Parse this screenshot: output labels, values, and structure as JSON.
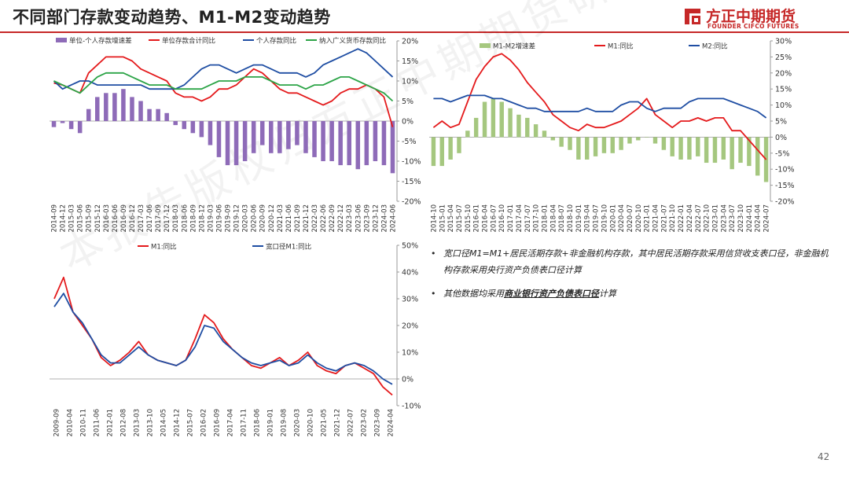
{
  "slide": {
    "title": "不同部门存款变动趋势、M1-M2变动趋势",
    "page_number": "42",
    "watermark": "本报告版权归方正中期期货研究院所有",
    "logo": {
      "cn": "方正中期期货",
      "en": "FOUNDER CIFCO FUTURES",
      "icon": "founder-logo-icon",
      "color": "#c62828"
    }
  },
  "notes": [
    {
      "text": "宽口径M1=M1+居民活期存款+非金融机构存款，其中居民活期存款采用信贷收支表口径，非金融机构存款采用央行资产负债表口径计算"
    },
    {
      "prefix": "其他数据均采用",
      "emph": "商业银行资产负债表口径",
      "suffix": "计算"
    }
  ],
  "chart_data": [
    {
      "id": "deposits",
      "type": "line",
      "legend_position": "top",
      "y_ticks": [
        "20%",
        "15%",
        "10%",
        "5%",
        "0%",
        "-5%",
        "-10%",
        "-15%",
        "-20%"
      ],
      "ylim": [
        -20,
        20
      ],
      "x_ticks": [
        "2014-09",
        "2014-12",
        "2015-03",
        "2015-06",
        "2015-09",
        "2015-12",
        "2016-03",
        "2016-06",
        "2016-09",
        "2016-12",
        "2017-03",
        "2017-06",
        "2017-09",
        "2017-12",
        "2018-03",
        "2018-06",
        "2018-09",
        "2018-12",
        "2019-03",
        "2019-06",
        "2019-09",
        "2019-12",
        "2020-03",
        "2020-06",
        "2020-09",
        "2020-12",
        "2021-03",
        "2021-06",
        "2021-09",
        "2021-12",
        "2022-03",
        "2022-06",
        "2022-09",
        "2022-12",
        "2023-03",
        "2023-06",
        "2023-09",
        "2023-12",
        "2024-03",
        "2024-06"
      ],
      "series": [
        {
          "name": "单位-个人存款增速差",
          "kind": "bar",
          "color": "#8e6bb8",
          "values": [
            -1.5,
            -0.5,
            -2,
            -3,
            3,
            6,
            7,
            7,
            8,
            6,
            5,
            3,
            3,
            2,
            -1,
            -2,
            -3,
            -4,
            -6,
            -9,
            -11,
            -11,
            -10,
            -8,
            -6,
            -8,
            -8,
            -7,
            -6,
            -8,
            -9,
            -10,
            -10,
            -11,
            -11,
            -12,
            -11,
            -10,
            -11,
            -13
          ]
        },
        {
          "name": "单位存款合计同比",
          "kind": "line",
          "color": "#e41a1c",
          "values": [
            9.5,
            9,
            8,
            7,
            12,
            14,
            16,
            16,
            16,
            15,
            13,
            12,
            11,
            10,
            7,
            6,
            6,
            5,
            6,
            8,
            8,
            9,
            11,
            13,
            12,
            10,
            8,
            7,
            7,
            6,
            5,
            4,
            5,
            7,
            8,
            8,
            9,
            8,
            6,
            -1.5
          ]
        },
        {
          "name": "个人存款同比",
          "kind": "line",
          "color": "#1f4ea3",
          "values": [
            10,
            8,
            9,
            10,
            10,
            9,
            9,
            9,
            9,
            9,
            9,
            8,
            8,
            8,
            8,
            9,
            11,
            13,
            14,
            14,
            13,
            12,
            13,
            14,
            14,
            13,
            12,
            12,
            12,
            11,
            12,
            14,
            15,
            16,
            17,
            18,
            17,
            15,
            13,
            11
          ]
        },
        {
          "name": "纳入广义货币存款同比",
          "kind": "line",
          "color": "#2ca447",
          "values": [
            10,
            9,
            8,
            7,
            9,
            11,
            12,
            12,
            12,
            11,
            10,
            9,
            9,
            9,
            8,
            8,
            8,
            8,
            9,
            10,
            10,
            10,
            11,
            11,
            11,
            10,
            9,
            9,
            9,
            8,
            9,
            9,
            10,
            11,
            11,
            10,
            9,
            8,
            7,
            5
          ]
        }
      ]
    },
    {
      "id": "m1m2",
      "type": "line",
      "legend_position": "top",
      "y_ticks": [
        "30%",
        "25%",
        "20%",
        "15%",
        "10%",
        "5%",
        "0%",
        "-5%",
        "-10%",
        "-15%",
        "-20%"
      ],
      "ylim": [
        -20,
        30
      ],
      "x_ticks": [
        "2014-10",
        "2015-01",
        "2015-04",
        "2015-07",
        "2015-10",
        "2016-01",
        "2016-04",
        "2016-07",
        "2016-10",
        "2017-01",
        "2017-04",
        "2017-07",
        "2017-10",
        "2018-01",
        "2018-04",
        "2018-07",
        "2018-10",
        "2019-01",
        "2019-04",
        "2019-07",
        "2019-10",
        "2020-01",
        "2020-04",
        "2020-07",
        "2020-10",
        "2021-01",
        "2021-04",
        "2021-07",
        "2021-10",
        "2022-01",
        "2022-04",
        "2022-07",
        "2022-10",
        "2023-01",
        "2023-04",
        "2023-07",
        "2023-10",
        "2024-01",
        "2024-04",
        "2024-07"
      ],
      "series": [
        {
          "name": "M1-M2增速差",
          "kind": "bar",
          "color": "#a5c77f",
          "values": [
            -9,
            -9,
            -7,
            -5,
            2,
            6,
            11,
            12,
            11,
            9,
            7,
            6,
            4,
            2,
            -1,
            -3,
            -4,
            -7,
            -7,
            -6,
            -5,
            -5,
            -4,
            -2,
            -1,
            0,
            -2,
            -4,
            -6,
            -7,
            -7,
            -6,
            -8,
            -8,
            -7,
            -10,
            -8,
            -9,
            -12,
            -14
          ]
        },
        {
          "name": "M1:同比",
          "kind": "line",
          "color": "#e41a1c",
          "values": [
            3,
            5,
            3,
            4,
            11,
            18,
            22,
            25,
            26,
            24,
            21,
            17,
            14,
            11,
            7,
            5,
            3,
            2,
            4,
            3,
            3,
            4,
            5,
            7,
            9,
            12,
            7,
            5,
            3,
            5,
            5,
            6,
            5,
            6,
            6,
            2,
            2,
            -1,
            -4,
            -7
          ]
        },
        {
          "name": "M2:同比",
          "kind": "line",
          "color": "#1f4ea3",
          "values": [
            12,
            12,
            11,
            12,
            13,
            13,
            13,
            12,
            12,
            11,
            10,
            9,
            9,
            8,
            8,
            8,
            8,
            8,
            9,
            8,
            8,
            8,
            10,
            11,
            11,
            9,
            8,
            9,
            9,
            9,
            11,
            12,
            12,
            12,
            12,
            11,
            10,
            9,
            8,
            6
          ]
        }
      ]
    },
    {
      "id": "broad-m1",
      "type": "line",
      "legend_position": "top",
      "y_ticks": [
        "50%",
        "40%",
        "30%",
        "20%",
        "10%",
        "0%",
        "-10%"
      ],
      "ylim": [
        -10,
        50
      ],
      "x_ticks": [
        "2009-09",
        "2010-04",
        "2010-11",
        "2011-06",
        "2012-01",
        "2012-08",
        "2013-03",
        "2013-10",
        "2014-05",
        "2014-12",
        "2015-07",
        "2016-02",
        "2016-09",
        "2017-04",
        "2017-11",
        "2018-06",
        "2019-01",
        "2019-08",
        "2020-03",
        "2020-10",
        "2021-05",
        "2021-12",
        "2022-07",
        "2023-02",
        "2023-09",
        "2024-04"
      ],
      "series": [
        {
          "name": "M1:同比",
          "kind": "line",
          "color": "#e41a1c",
          "values": [
            30,
            38,
            25,
            20,
            15,
            8,
            5,
            7,
            10,
            14,
            9,
            7,
            6,
            5,
            7,
            15,
            24,
            21,
            15,
            11,
            8,
            5,
            4,
            6,
            8,
            5,
            7,
            10,
            5,
            3,
            2,
            5,
            6,
            4,
            2,
            -3,
            -6
          ]
        },
        {
          "name": "宽口径M1:同比",
          "kind": "line",
          "color": "#1f4ea3",
          "values": [
            27,
            32,
            25,
            21,
            15,
            9,
            6,
            6,
            9,
            12,
            9,
            7,
            6,
            5,
            7,
            12,
            20,
            19,
            14,
            11,
            8,
            6,
            5,
            6,
            7,
            5,
            6,
            9,
            6,
            4,
            3,
            5,
            6,
            5,
            3,
            0,
            -2
          ]
        }
      ]
    }
  ]
}
